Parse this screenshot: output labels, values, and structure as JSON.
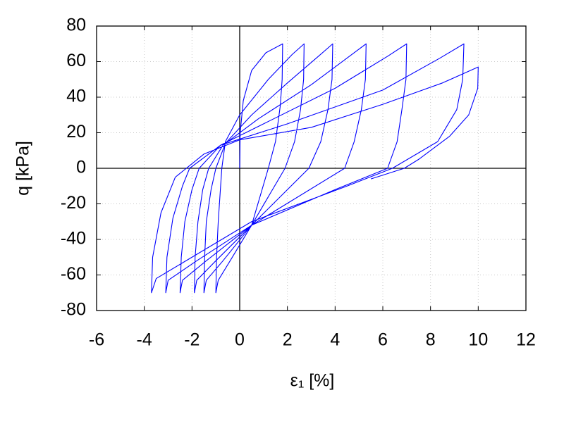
{
  "chart_data": {
    "type": "line",
    "xlabel": "ε₁ [%]",
    "ylabel": "q [kPa]",
    "color": "#0000ff",
    "grid": true,
    "xlim": [
      -6,
      12
    ],
    "xticks": [
      -6,
      -4,
      -2,
      0,
      2,
      4,
      6,
      8,
      10,
      12
    ],
    "ylim": [
      -80,
      80
    ],
    "yticks": [
      -80,
      -60,
      -40,
      -20,
      0,
      20,
      40,
      60,
      80
    ],
    "x": [
      0,
      0.02,
      0.15,
      0.5,
      1.1,
      1.8,
      1.78,
      1.7,
      1.5,
      1.2,
      0.5,
      -0.4,
      -0.9,
      -1.0,
      -0.97,
      -0.9,
      -0.8,
      -0.75,
      -0.6,
      0,
      1.2,
      2.2,
      2.7,
      2.68,
      2.55,
      2.3,
      1.9,
      0.5,
      -0.7,
      -1.4,
      -1.5,
      -1.47,
      -1.4,
      -1.2,
      -1.0,
      -0.6,
      0.5,
      2,
      3.3,
      3.9,
      3.87,
      3.7,
      3.4,
      2.9,
      0.5,
      -1.0,
      -1.8,
      -1.9,
      -1.87,
      -1.75,
      -1.55,
      -1.3,
      -0.7,
      0.8,
      3,
      4.6,
      5.3,
      5.27,
      5.1,
      4.8,
      4.4,
      0.5,
      -1.4,
      -2.4,
      -2.5,
      -2.45,
      -2.3,
      -2.0,
      -1.7,
      -0.8,
      1,
      4,
      6.2,
      7.0,
      6.97,
      6.8,
      6.6,
      6.2,
      4,
      0.5,
      -1.8,
      -3.0,
      -3.1,
      -3.05,
      -2.8,
      -2.4,
      -2.1,
      -0.8,
      2,
      6,
      8.4,
      9.4,
      9.35,
      9.1,
      8.3,
      6.4,
      4.5,
      0.5,
      -2.0,
      -3.5,
      -3.7,
      -3.65,
      -3.3,
      -2.7,
      -1.5,
      0,
      3,
      6,
      8.5,
      10,
      9.98,
      9.6,
      8.8,
      7.5,
      6.9,
      5.5
    ],
    "values": [
      0,
      20,
      38,
      55,
      65,
      70,
      50,
      35,
      15,
      0,
      -32,
      -52,
      -63,
      -70,
      -50,
      -30,
      -10,
      0,
      15,
      30,
      50,
      64,
      70,
      50,
      33,
      15,
      0,
      -32,
      -52,
      -63,
      -70,
      -50,
      -30,
      -12,
      0,
      14,
      30,
      48,
      63,
      70,
      50,
      33,
      15,
      0,
      -32,
      -52,
      -63,
      -70,
      -50,
      -30,
      -12,
      0,
      13,
      28,
      47,
      63,
      70,
      50,
      33,
      15,
      0,
      -32,
      -52,
      -63,
      -70,
      -50,
      -30,
      -12,
      0,
      13,
      25,
      45,
      63,
      70,
      50,
      33,
      15,
      0,
      -12,
      -32,
      -52,
      -63,
      -70,
      -50,
      -28,
      -10,
      0,
      13,
      25,
      44,
      62,
      70,
      50,
      33,
      15,
      0,
      -10,
      -30,
      -50,
      -62,
      -70,
      -50,
      -25,
      -5,
      8,
      16,
      23,
      36,
      48,
      57,
      45,
      30,
      18,
      5,
      0,
      -6
    ]
  }
}
